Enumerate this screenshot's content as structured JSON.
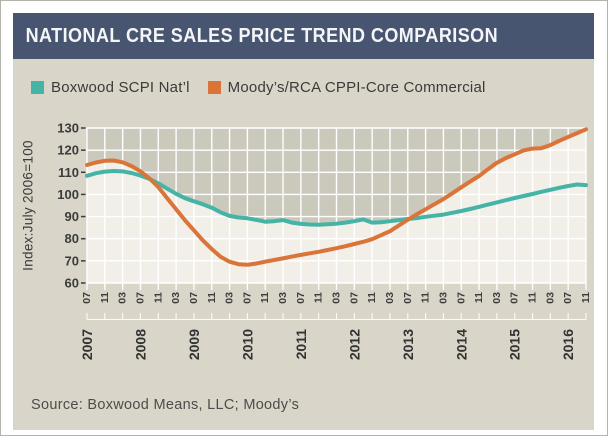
{
  "page": {
    "background": "#ffffff",
    "border_color": "#b3b3ab"
  },
  "header": {
    "title": "NATIONAL CRE SALES PRICE TREND COMPARISON",
    "background": "#475571",
    "text_color": "#f4f5f7"
  },
  "panel": {
    "background": "#d9d6c9"
  },
  "legend": {
    "items": [
      {
        "label": "Boxwood SCPI Nat’l",
        "color": "#45b4a6"
      },
      {
        "label": "Moody’s/RCA CPPI-Core Commercial",
        "color": "#da7438"
      }
    ]
  },
  "source_note": "Source: Boxwood Means, LLC; Moody’s",
  "chart_data": {
    "type": "line",
    "title": "NATIONAL CRE SALES PRICE TREND COMPARISON",
    "ylabel": "Index:July 2006=100",
    "ylim": [
      60,
      130
    ],
    "ytick_step": 10,
    "ytick_labels": [
      "60",
      "70",
      "80",
      "90",
      "100",
      "110",
      "120",
      "130"
    ],
    "x_start_label": "Jul 2007",
    "x_end_label": "Nov 2016",
    "x_tick_interval_months": 4,
    "x_tick_labels": [
      "07",
      "11",
      "03",
      "07",
      "11",
      "03",
      "07",
      "11",
      "03",
      "07",
      "11",
      "03",
      "07",
      "11",
      "03",
      "07",
      "11",
      "03",
      "07",
      "11",
      "03",
      "07",
      "11",
      "03",
      "07",
      "11",
      "03",
      "07",
      "11"
    ],
    "year_labels": [
      "2007",
      "2008",
      "2009",
      "2010",
      "2011",
      "2012",
      "2013",
      "2014",
      "2015",
      "2016"
    ],
    "grid": true,
    "legend_position": "top-left",
    "plot_background": "#cbc8bc",
    "area_fill": "#f1efe8",
    "gridline_color": "#ffffff",
    "axis_text_color": "#3b3b3b",
    "sample_step_months": 2,
    "series": [
      {
        "name": "Boxwood SCPI Nat’l",
        "color": "#45b4a6",
        "values": [
          108.4,
          109.6,
          110.3,
          110.6,
          110.4,
          109.7,
          108.5,
          107.0,
          105.0,
          102.6,
          100.3,
          98.3,
          96.9,
          95.6,
          94.0,
          91.9,
          90.3,
          89.6,
          89.2,
          88.5,
          87.7,
          87.9,
          88.4,
          87.3,
          86.7,
          86.4,
          86.3,
          86.5,
          86.8,
          87.3,
          87.9,
          88.7,
          87.3,
          87.4,
          87.9,
          88.4,
          88.9,
          89.3,
          89.9,
          90.4,
          90.9,
          91.7,
          92.5,
          93.4,
          94.4,
          95.4,
          96.4,
          97.4,
          98.4,
          99.3,
          100.2,
          101.2,
          102.1,
          103.0,
          103.8,
          104.5,
          104.2
        ]
      },
      {
        "name": "Moody’s/RCA CPPI-Core Commercial",
        "color": "#da7438",
        "values": [
          113.3,
          114.4,
          115.2,
          115.3,
          114.5,
          112.8,
          110.4,
          107.3,
          103.3,
          98.3,
          93.3,
          88.3,
          83.8,
          79.3,
          75.3,
          71.8,
          69.6,
          68.5,
          68.2,
          68.8,
          69.6,
          70.4,
          71.1,
          71.9,
          72.7,
          73.4,
          74.1,
          74.9,
          75.7,
          76.6,
          77.6,
          78.6,
          79.8,
          81.6,
          83.4,
          86.0,
          88.6,
          91.0,
          93.3,
          95.6,
          97.9,
          100.5,
          103.2,
          105.8,
          108.3,
          111.4,
          114.3,
          116.4,
          118.1,
          119.9,
          120.7,
          120.9,
          122.3,
          124.2,
          126.0,
          127.7,
          129.4
        ]
      }
    ]
  }
}
